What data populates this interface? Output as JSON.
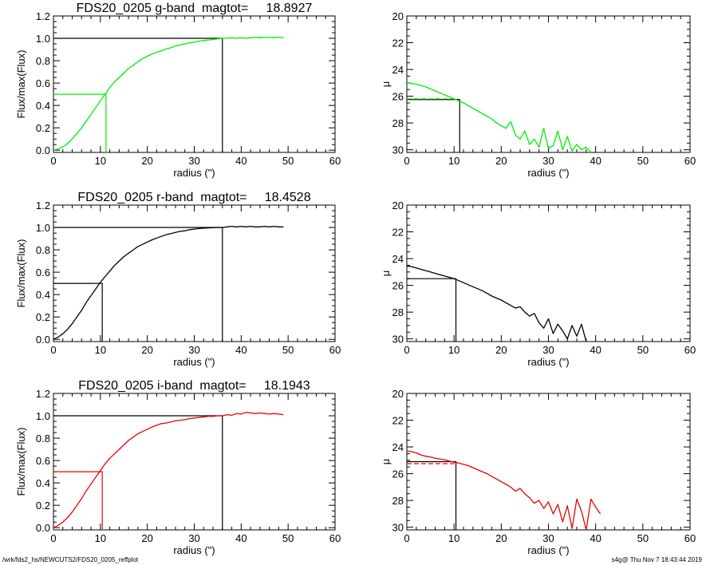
{
  "colors": {
    "g": "#00ee00",
    "r": "#000000",
    "i": "#ee0000",
    "axes": "#000000"
  },
  "footer": {
    "left": "/wrk/fds2_hs/NEWCUTS2/FDS20_0205_reffplot",
    "right": "s4g@  Thu Nov  7 18:43:44 2019"
  },
  "chart_data": [
    {
      "type": "line",
      "band": "g",
      "panel": "growth-curve",
      "title": "FDS20_0205 g-band  magtot=     18.8927",
      "xlabel": "radius (\")",
      "ylabel": "Flux/max(Flux)",
      "xlim": [
        0,
        60
      ],
      "ylim": [
        -0.02,
        1.2
      ],
      "xticks": [
        0,
        10,
        20,
        30,
        40,
        50,
        60
      ],
      "yticks": [
        0.0,
        0.2,
        0.4,
        0.6,
        0.8,
        1.0,
        1.2
      ],
      "ytick_labels": [
        "0.0",
        "0.2",
        "0.4",
        "0.6",
        "0.8",
        "1.0",
        "1.2"
      ],
      "series": [
        {
          "color": "#00ee00",
          "x": [
            0,
            1,
            2,
            3,
            4,
            5,
            6,
            7,
            8,
            9,
            10,
            11,
            12,
            13,
            14,
            15,
            16,
            17,
            18,
            19,
            20,
            21,
            22,
            23,
            24,
            25,
            26,
            27,
            28,
            29,
            30,
            31,
            32,
            33,
            34,
            35,
            36,
            37,
            38,
            39,
            40,
            41,
            42,
            43,
            44,
            45,
            46,
            47,
            48,
            49
          ],
          "y": [
            0.0,
            0.01,
            0.03,
            0.06,
            0.1,
            0.15,
            0.2,
            0.26,
            0.32,
            0.38,
            0.44,
            0.5,
            0.56,
            0.61,
            0.65,
            0.69,
            0.73,
            0.76,
            0.79,
            0.82,
            0.84,
            0.86,
            0.875,
            0.89,
            0.905,
            0.915,
            0.93,
            0.94,
            0.95,
            0.96,
            0.965,
            0.975,
            0.98,
            0.985,
            0.99,
            0.995,
            1.0,
            1.0,
            1.005,
            1.0,
            1.005,
            1.0,
            1.005,
            1.01,
            1.005,
            1.01,
            1.01,
            1.005,
            1.01,
            1.005
          ]
        }
      ],
      "reference_lines": {
        "half_radius": 11.2,
        "half_level": 0.5,
        "total_radius": 36.0,
        "total_level": 1.0
      }
    },
    {
      "type": "line",
      "band": "g",
      "panel": "surface-brightness",
      "title": "",
      "xlabel": "radius (\")",
      "ylabel": "μ",
      "xlim": [
        0,
        60
      ],
      "ylim": [
        30.2,
        20
      ],
      "inverted_y": true,
      "xticks": [
        0,
        10,
        20,
        30,
        40,
        50,
        60
      ],
      "yticks": [
        20,
        22,
        24,
        26,
        28,
        30
      ],
      "series": [
        {
          "color": "#00ee00",
          "style": "solid",
          "x": [
            0,
            1,
            2,
            3,
            4,
            5,
            6,
            7,
            8,
            9,
            10,
            11,
            12,
            13,
            14,
            15,
            16,
            17,
            18,
            19,
            20,
            21,
            22,
            23,
            24,
            25,
            26,
            27,
            28,
            29,
            30,
            31,
            32,
            33,
            34,
            35,
            36,
            37,
            38,
            39
          ],
          "y": [
            25.0,
            25.05,
            25.1,
            25.2,
            25.3,
            25.45,
            25.6,
            25.75,
            25.9,
            26.05,
            26.2,
            26.35,
            26.5,
            26.7,
            26.9,
            27.1,
            27.3,
            27.5,
            27.7,
            28.0,
            28.2,
            28.4,
            27.9,
            28.9,
            29.2,
            28.6,
            29.6,
            29.2,
            29.8,
            28.4,
            29.9,
            29.7,
            28.6,
            30.0,
            29.0,
            30.1,
            29.6,
            30.0,
            29.8,
            30.2
          ]
        },
        {
          "color": "#00ee00",
          "style": "dashed",
          "x": [
            0,
            10
          ],
          "y": [
            26.2,
            26.2
          ]
        }
      ],
      "reference_lines": {
        "half_radius": 11.2,
        "level": 26.25
      }
    },
    {
      "type": "line",
      "band": "r",
      "panel": "growth-curve",
      "title": "FDS20_0205 r-band  magtot=     18.4528",
      "xlabel": "radius (\")",
      "ylabel": "Flux/max(Flux)",
      "xlim": [
        0,
        60
      ],
      "ylim": [
        -0.02,
        1.2
      ],
      "xticks": [
        0,
        10,
        20,
        30,
        40,
        50,
        60
      ],
      "yticks": [
        0.0,
        0.2,
        0.4,
        0.6,
        0.8,
        1.0,
        1.2
      ],
      "ytick_labels": [
        "0.0",
        "0.2",
        "0.4",
        "0.6",
        "0.8",
        "1.0",
        "1.2"
      ],
      "series": [
        {
          "color": "#000000",
          "x": [
            0,
            1,
            2,
            3,
            4,
            5,
            6,
            7,
            8,
            9,
            10,
            11,
            12,
            13,
            14,
            15,
            16,
            17,
            18,
            19,
            20,
            21,
            22,
            23,
            24,
            25,
            26,
            27,
            28,
            29,
            30,
            31,
            32,
            33,
            34,
            35,
            36,
            37,
            38,
            39,
            40,
            41,
            42,
            43,
            44,
            45,
            46,
            47,
            48,
            49
          ],
          "y": [
            0.0,
            0.02,
            0.05,
            0.09,
            0.14,
            0.2,
            0.26,
            0.33,
            0.39,
            0.45,
            0.51,
            0.56,
            0.61,
            0.66,
            0.7,
            0.74,
            0.77,
            0.8,
            0.83,
            0.85,
            0.87,
            0.89,
            0.905,
            0.92,
            0.935,
            0.945,
            0.955,
            0.965,
            0.97,
            0.98,
            0.985,
            0.99,
            0.993,
            0.996,
            0.998,
            1.0,
            1.0,
            1.005,
            1.01,
            1.005,
            1.01,
            1.005,
            1.01,
            1.005,
            1.005,
            1.01,
            1.005,
            1.01,
            1.005,
            1.005
          ]
        }
      ],
      "reference_lines": {
        "half_radius": 10.4,
        "half_level": 0.5,
        "total_radius": 36.0,
        "total_level": 1.0
      }
    },
    {
      "type": "line",
      "band": "r",
      "panel": "surface-brightness",
      "title": "",
      "xlabel": "radius (\")",
      "ylabel": "μ",
      "xlim": [
        0,
        60
      ],
      "ylim": [
        30.2,
        20
      ],
      "inverted_y": true,
      "xticks": [
        0,
        10,
        20,
        30,
        40,
        50,
        60
      ],
      "yticks": [
        20,
        22,
        24,
        26,
        28,
        30
      ],
      "series": [
        {
          "color": "#000000",
          "style": "solid",
          "x": [
            0,
            1,
            2,
            3,
            4,
            5,
            6,
            7,
            8,
            9,
            10,
            11,
            12,
            13,
            14,
            15,
            16,
            17,
            18,
            19,
            20,
            21,
            22,
            23,
            24,
            25,
            26,
            27,
            28,
            29,
            30,
            31,
            32,
            33,
            34,
            35,
            36,
            37,
            38
          ],
          "y": [
            24.55,
            24.6,
            24.7,
            24.8,
            24.9,
            25.0,
            25.1,
            25.2,
            25.3,
            25.4,
            25.5,
            25.65,
            25.8,
            25.95,
            26.1,
            26.25,
            26.4,
            26.6,
            26.8,
            26.95,
            27.1,
            27.3,
            27.5,
            27.7,
            27.6,
            28.0,
            28.3,
            28.1,
            28.8,
            29.2,
            28.5,
            29.6,
            28.9,
            29.4,
            30.0,
            29.0,
            29.8,
            28.9,
            30.2
          ]
        }
      ],
      "reference_lines": {
        "half_radius": 10.4,
        "level": 25.5
      }
    },
    {
      "type": "line",
      "band": "i",
      "panel": "growth-curve",
      "title": "FDS20_0205 i-band  magtot=     18.1943",
      "xlabel": "radius (\")",
      "ylabel": "Flux/max(Flux)",
      "xlim": [
        0,
        60
      ],
      "ylim": [
        -0.02,
        1.2
      ],
      "xticks": [
        0,
        10,
        20,
        30,
        40,
        50,
        60
      ],
      "yticks": [
        0.0,
        0.2,
        0.4,
        0.6,
        0.8,
        1.0,
        1.2
      ],
      "ytick_labels": [
        "0.0",
        "0.2",
        "0.4",
        "0.6",
        "0.8",
        "1.0",
        "1.2"
      ],
      "series": [
        {
          "color": "#ee0000",
          "x": [
            0,
            1,
            2,
            3,
            4,
            5,
            6,
            7,
            8,
            9,
            10,
            11,
            12,
            13,
            14,
            15,
            16,
            17,
            18,
            19,
            20,
            21,
            22,
            23,
            24,
            25,
            26,
            27,
            28,
            29,
            30,
            31,
            32,
            33,
            34,
            35,
            36,
            37,
            38,
            39,
            40,
            41,
            42,
            43,
            44,
            45,
            46,
            47,
            48,
            49
          ],
          "y": [
            0.0,
            0.02,
            0.05,
            0.09,
            0.14,
            0.2,
            0.26,
            0.33,
            0.39,
            0.45,
            0.51,
            0.57,
            0.62,
            0.66,
            0.7,
            0.74,
            0.78,
            0.81,
            0.84,
            0.86,
            0.88,
            0.9,
            0.915,
            0.93,
            0.935,
            0.945,
            0.955,
            0.96,
            0.965,
            0.975,
            0.98,
            0.985,
            0.99,
            0.995,
            0.995,
            1.0,
            1.0,
            1.01,
            1.005,
            1.02,
            1.015,
            1.03,
            1.025,
            1.02,
            1.025,
            1.02,
            1.015,
            1.02,
            1.015,
            1.01
          ]
        }
      ],
      "reference_lines": {
        "half_radius": 10.4,
        "half_level": 0.5,
        "total_radius": 36.0,
        "total_level": 1.0
      }
    },
    {
      "type": "line",
      "band": "i",
      "panel": "surface-brightness",
      "title": "",
      "xlabel": "radius (\")",
      "ylabel": "μ",
      "xlim": [
        0,
        60
      ],
      "ylim": [
        30.2,
        20
      ],
      "inverted_y": true,
      "xticks": [
        0,
        10,
        20,
        30,
        40,
        50,
        60
      ],
      "yticks": [
        20,
        22,
        24,
        26,
        28,
        30
      ],
      "series": [
        {
          "color": "#ee0000",
          "style": "solid",
          "x": [
            0,
            1,
            2,
            3,
            4,
            5,
            6,
            7,
            8,
            9,
            10,
            11,
            12,
            13,
            14,
            15,
            16,
            17,
            18,
            19,
            20,
            21,
            22,
            23,
            24,
            25,
            26,
            27,
            28,
            29,
            30,
            31,
            32,
            33,
            34,
            35,
            36,
            37,
            38,
            39,
            40,
            41
          ],
          "y": [
            24.3,
            24.35,
            24.45,
            24.6,
            24.7,
            24.75,
            24.85,
            24.9,
            24.95,
            25.05,
            25.15,
            25.2,
            25.3,
            25.4,
            25.55,
            25.7,
            25.85,
            26.0,
            26.2,
            26.4,
            26.6,
            26.8,
            27.0,
            27.3,
            27.1,
            27.5,
            27.8,
            28.2,
            28.0,
            28.6,
            28.1,
            29.0,
            28.3,
            29.6,
            28.4,
            30.1,
            27.9,
            28.8,
            30.2,
            27.9,
            28.5,
            29.0
          ]
        },
        {
          "color": "#ee0000",
          "style": "dashed",
          "x": [
            0,
            10
          ],
          "y": [
            25.25,
            25.25
          ]
        }
      ],
      "reference_lines": {
        "half_radius": 10.4,
        "level": 25.1
      }
    }
  ]
}
